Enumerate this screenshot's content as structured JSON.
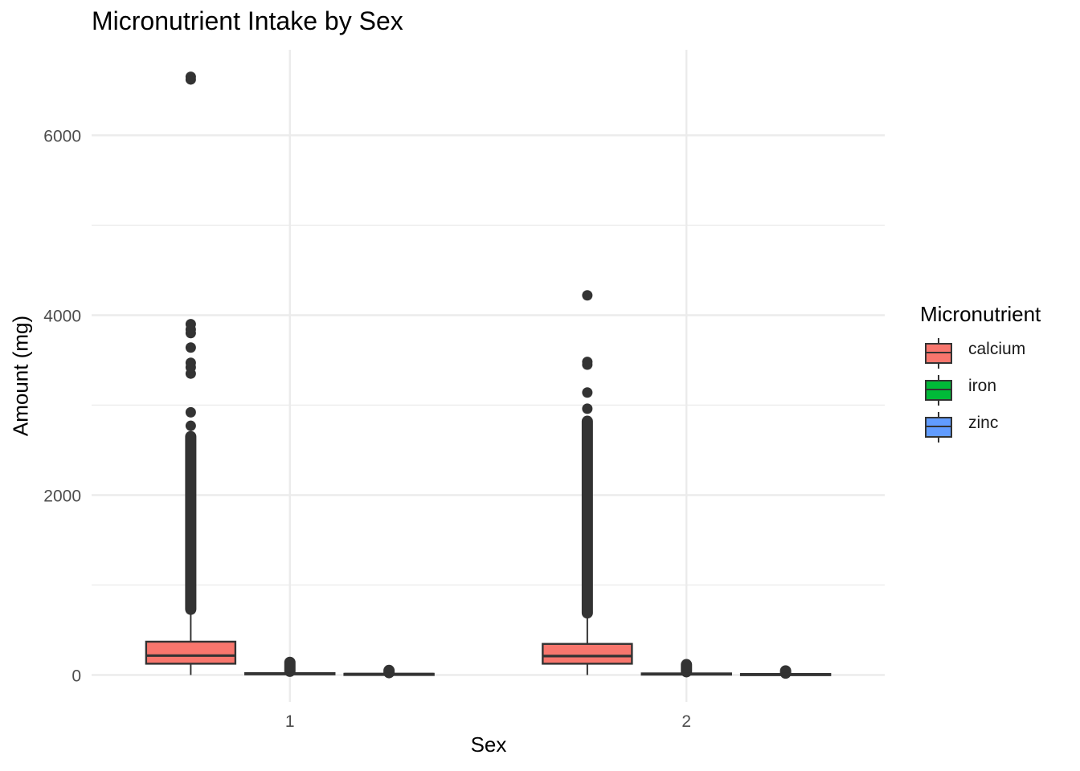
{
  "chart_data": {
    "type": "boxplot",
    "title": "Micronutrient Intake by Sex",
    "xlabel": "Sex",
    "ylabel": "Amount (mg)",
    "categories": [
      "1",
      "2"
    ],
    "ylim": [
      -300,
      6950
    ],
    "yticks": [
      0,
      2000,
      4000,
      6000
    ],
    "grid": true,
    "legend": {
      "title": "Micronutrient",
      "position": "right",
      "entries": [
        "calcium",
        "iron",
        "zinc"
      ]
    },
    "series": [
      {
        "name": "calcium",
        "color": "#F8766D",
        "boxes": [
          {
            "category": "1",
            "lower_whisker": 0,
            "q1": 125,
            "median": 215,
            "q3": 370,
            "upper_whisker": 730,
            "outlier_range": [
              730,
              2650
            ],
            "outliers": [
              2770,
              2920,
              3350,
              3420,
              3470,
              3640,
              3800,
              3840,
              3900,
              6620,
              6650
            ]
          },
          {
            "category": "2",
            "lower_whisker": 0,
            "q1": 125,
            "median": 210,
            "q3": 345,
            "upper_whisker": 690,
            "outlier_range": [
              690,
              2820
            ],
            "outliers": [
              2960,
              3140,
              3450,
              3480,
              4220
            ]
          }
        ]
      },
      {
        "name": "iron",
        "color": "#00BA38",
        "boxes": [
          {
            "category": "1",
            "lower_whisker": 0,
            "q1": 8,
            "median": 13,
            "q3": 20,
            "upper_whisker": 40,
            "outlier_range": [
              40,
              140
            ],
            "outliers": []
          },
          {
            "category": "2",
            "lower_whisker": 0,
            "q1": 7,
            "median": 11,
            "q3": 17,
            "upper_whisker": 35,
            "outlier_range": [
              35,
              115
            ],
            "outliers": []
          }
        ]
      },
      {
        "name": "zinc",
        "color": "#619CFF",
        "boxes": [
          {
            "category": "1",
            "lower_whisker": 0,
            "q1": 5,
            "median": 9,
            "q3": 13,
            "upper_whisker": 25,
            "outlier_range": [
              25,
              50
            ],
            "outliers": []
          },
          {
            "category": "2",
            "lower_whisker": 0,
            "q1": 4,
            "median": 7,
            "q3": 11,
            "upper_whisker": 20,
            "outlier_range": [
              20,
              45
            ],
            "outliers": []
          }
        ]
      }
    ]
  }
}
